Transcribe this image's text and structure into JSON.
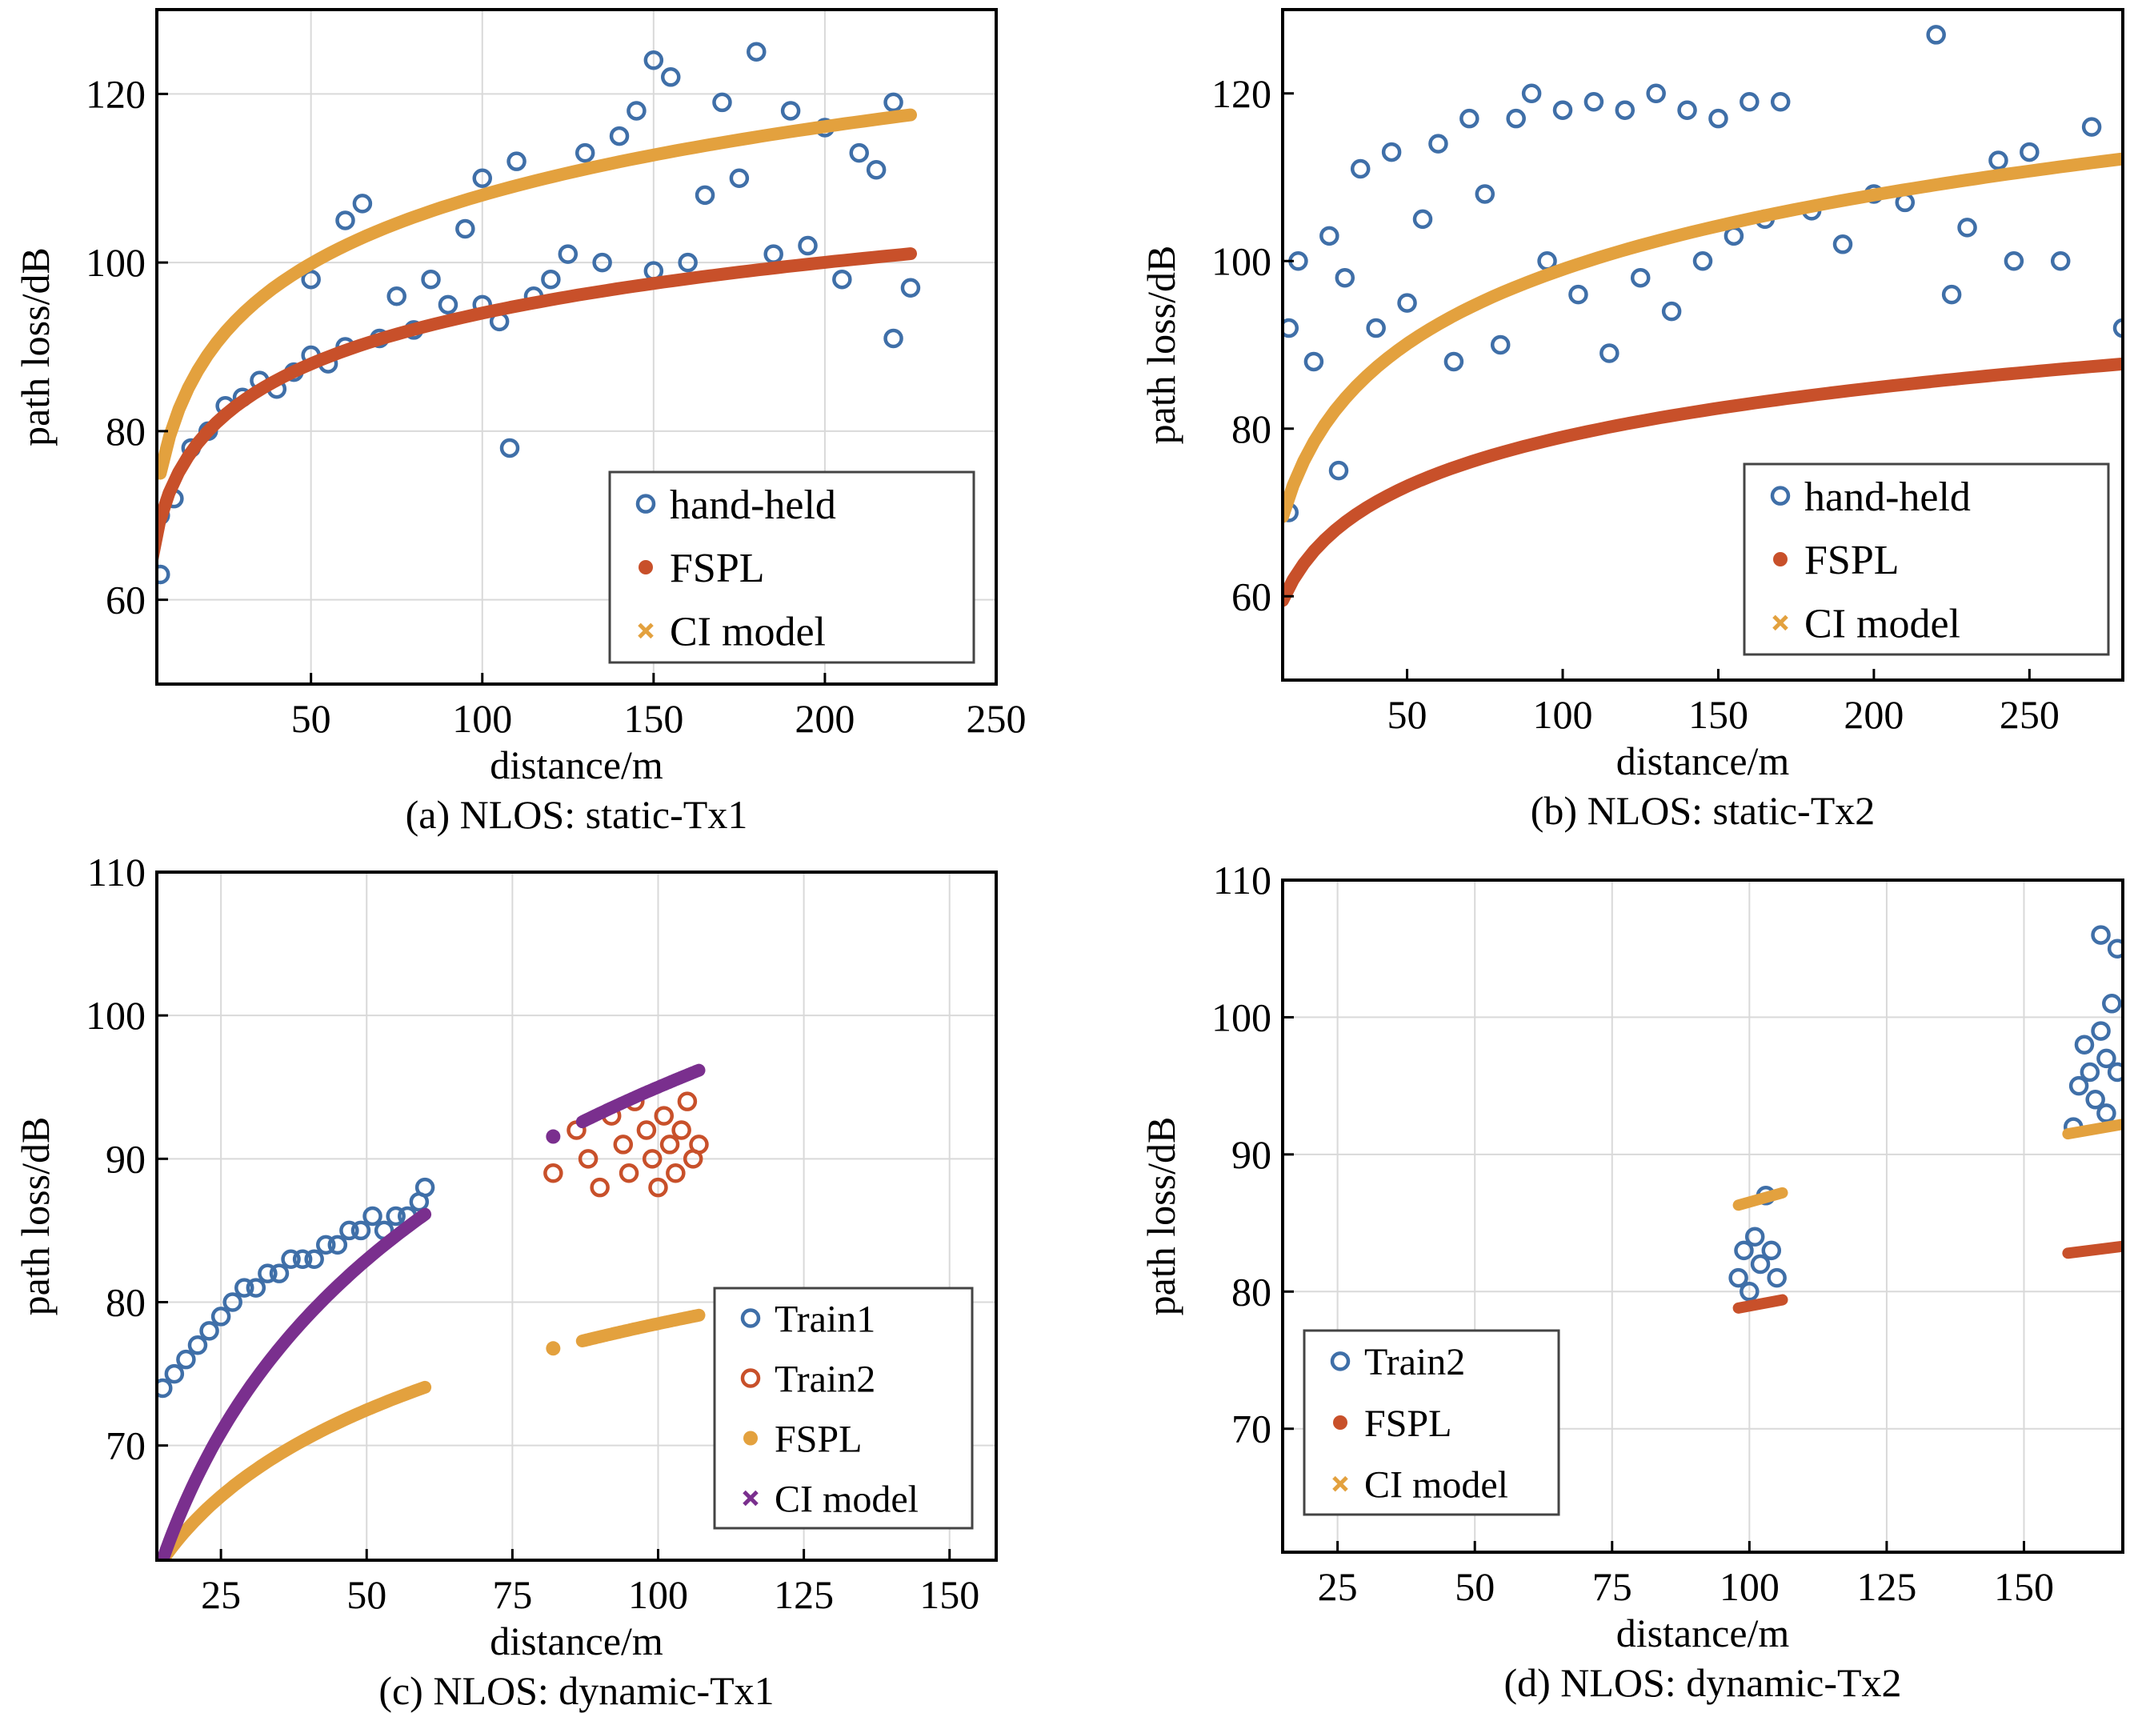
{
  "colors": {
    "blue": "#3f6fa8",
    "red": "#c8502a",
    "orange": "#e3a13e",
    "purple": "#7a2f8e",
    "grid": "#d9d9d9"
  },
  "chart_data": [
    {
      "type": "scatter",
      "caption": "(a) NLOS: static-Tx1",
      "xlabel": "distance/m",
      "ylabel": "path loss/dB",
      "xlim": [
        5,
        250
      ],
      "ylim": [
        50,
        130
      ],
      "xticks": [
        50,
        100,
        150,
        200,
        250
      ],
      "yticks": [
        60,
        80,
        100,
        120
      ],
      "grid": true,
      "legend_position": "lower-right",
      "series": [
        {
          "name": "hand-held",
          "marker": "circle-open",
          "color": "#3f6fa8",
          "points": [
            [
              6,
              63
            ],
            [
              6,
              70
            ],
            [
              10,
              72
            ],
            [
              15,
              78
            ],
            [
              20,
              80
            ],
            [
              25,
              83
            ],
            [
              30,
              84
            ],
            [
              35,
              86
            ],
            [
              40,
              85
            ],
            [
              45,
              87
            ],
            [
              50,
              89
            ],
            [
              50,
              98
            ],
            [
              55,
              88
            ],
            [
              60,
              90
            ],
            [
              60,
              105
            ],
            [
              65,
              107
            ],
            [
              70,
              91
            ],
            [
              75,
              96
            ],
            [
              80,
              92
            ],
            [
              85,
              98
            ],
            [
              90,
              95
            ],
            [
              95,
              104
            ],
            [
              100,
              95
            ],
            [
              100,
              110
            ],
            [
              105,
              93
            ],
            [
              108,
              78
            ],
            [
              110,
              112
            ],
            [
              115,
              96
            ],
            [
              120,
              98
            ],
            [
              125,
              101
            ],
            [
              130,
              113
            ],
            [
              135,
              100
            ],
            [
              140,
              115
            ],
            [
              145,
              118
            ],
            [
              150,
              124
            ],
            [
              150,
              99
            ],
            [
              155,
              122
            ],
            [
              160,
              100
            ],
            [
              165,
              108
            ],
            [
              170,
              119
            ],
            [
              175,
              110
            ],
            [
              180,
              125
            ],
            [
              185,
              101
            ],
            [
              190,
              118
            ],
            [
              195,
              102
            ],
            [
              200,
              116
            ],
            [
              205,
              98
            ],
            [
              210,
              113
            ],
            [
              215,
              111
            ],
            [
              220,
              119
            ],
            [
              220,
              91
            ],
            [
              225,
              97
            ]
          ]
        },
        {
          "name": "FSPL",
          "marker": "dot",
          "color": "#c8502a",
          "curve": {
            "type": "log",
            "y0": 54,
            "x0": 1,
            "exponent": 2.0
          },
          "x_range": [
            3,
            225
          ]
        },
        {
          "name": "CI model",
          "marker": "x",
          "color": "#e3a13e",
          "curve": {
            "type": "log",
            "y0": 54,
            "x0": 1,
            "exponent": 2.7
          },
          "x_range": [
            6,
            225
          ]
        }
      ]
    },
    {
      "type": "scatter",
      "caption": "(b) NLOS: static-Tx2",
      "xlabel": "distance/m",
      "ylabel": "path loss/dB",
      "xlim": [
        10,
        280
      ],
      "ylim": [
        50,
        130
      ],
      "xticks": [
        50,
        100,
        150,
        200,
        250
      ],
      "yticks": [
        60,
        80,
        100,
        120
      ],
      "grid": false,
      "legend_position": "lower-right",
      "series": [
        {
          "name": "hand-held",
          "marker": "circle-open",
          "color": "#3f6fa8",
          "points": [
            [
              12,
              70
            ],
            [
              12,
              92
            ],
            [
              15,
              100
            ],
            [
              20,
              88
            ],
            [
              25,
              103
            ],
            [
              28,
              75
            ],
            [
              30,
              98
            ],
            [
              35,
              111
            ],
            [
              40,
              92
            ],
            [
              45,
              113
            ],
            [
              50,
              95
            ],
            [
              55,
              105
            ],
            [
              60,
              114
            ],
            [
              65,
              88
            ],
            [
              70,
              117
            ],
            [
              75,
              108
            ],
            [
              80,
              90
            ],
            [
              85,
              117
            ],
            [
              90,
              120
            ],
            [
              95,
              100
            ],
            [
              100,
              118
            ],
            [
              105,
              96
            ],
            [
              110,
              119
            ],
            [
              115,
              89
            ],
            [
              120,
              118
            ],
            [
              125,
              98
            ],
            [
              130,
              120
            ],
            [
              135,
              94
            ],
            [
              140,
              118
            ],
            [
              145,
              100
            ],
            [
              150,
              117
            ],
            [
              155,
              103
            ],
            [
              160,
              119
            ],
            [
              165,
              105
            ],
            [
              170,
              119
            ],
            [
              180,
              106
            ],
            [
              190,
              102
            ],
            [
              200,
              108
            ],
            [
              210,
              107
            ],
            [
              220,
              127
            ],
            [
              225,
              96
            ],
            [
              230,
              104
            ],
            [
              240,
              112
            ],
            [
              245,
              100
            ],
            [
              250,
              113
            ],
            [
              260,
              100
            ],
            [
              270,
              116
            ],
            [
              280,
              92
            ]
          ]
        },
        {
          "name": "FSPL",
          "marker": "dot",
          "color": "#c8502a",
          "curve": {
            "type": "log",
            "y0": 40,
            "x0": 1,
            "exponent": 1.95
          },
          "x_range": [
            10,
            280
          ]
        },
        {
          "name": "CI model",
          "marker": "x",
          "color": "#e3a13e",
          "curve": {
            "type": "log",
            "y0": 40,
            "x0": 1,
            "exponent": 2.95
          },
          "x_range": [
            10,
            280
          ]
        }
      ]
    },
    {
      "type": "scatter",
      "caption": "(c) NLOS: dynamic-Tx1",
      "xlabel": "distance/m",
      "ylabel": "path loss/dB",
      "xlim": [
        14,
        158
      ],
      "ylim": [
        62,
        110
      ],
      "xticks": [
        25,
        50,
        75,
        100,
        125,
        150
      ],
      "yticks": [
        70,
        80,
        90,
        100,
        110
      ],
      "grid": true,
      "legend_position": "lower-right",
      "series": [
        {
          "name": "Train1",
          "marker": "circle-open",
          "color": "#3f6fa8",
          "points": [
            [
              15,
              74
            ],
            [
              17,
              75
            ],
            [
              19,
              76
            ],
            [
              21,
              77
            ],
            [
              23,
              78
            ],
            [
              25,
              79
            ],
            [
              27,
              80
            ],
            [
              29,
              81
            ],
            [
              31,
              81
            ],
            [
              33,
              82
            ],
            [
              35,
              82
            ],
            [
              37,
              83
            ],
            [
              39,
              83
            ],
            [
              41,
              83
            ],
            [
              43,
              84
            ],
            [
              45,
              84
            ],
            [
              47,
              85
            ],
            [
              49,
              85
            ],
            [
              51,
              86
            ],
            [
              53,
              85
            ],
            [
              55,
              86
            ],
            [
              57,
              86
            ],
            [
              59,
              87
            ],
            [
              60,
              88
            ]
          ]
        },
        {
          "name": "Train2",
          "marker": "circle-open",
          "color": "#c8502a",
          "points": [
            [
              82,
              89
            ],
            [
              86,
              92
            ],
            [
              88,
              90
            ],
            [
              90,
              88
            ],
            [
              92,
              93
            ],
            [
              94,
              91
            ],
            [
              95,
              89
            ],
            [
              96,
              94
            ],
            [
              98,
              92
            ],
            [
              99,
              90
            ],
            [
              100,
              88
            ],
            [
              101,
              93
            ],
            [
              102,
              91
            ],
            [
              103,
              89
            ],
            [
              104,
              92
            ],
            [
              105,
              94
            ],
            [
              106,
              90
            ],
            [
              107,
              91
            ]
          ]
        },
        {
          "name": "FSPL",
          "marker": "dot",
          "color": "#e3a13e",
          "curve": {
            "type": "log",
            "y0": 38.5,
            "x0": 1,
            "exponent": 2.0
          },
          "x_ranges": [
            [
              14,
              60
            ],
            [
              82,
              82
            ],
            [
              87,
              107
            ]
          ]
        },
        {
          "name": "CI model",
          "marker": "x",
          "color": "#7a2f8e",
          "curve": {
            "type": "log",
            "y0": 15,
            "x0": 1,
            "exponent": 4.0
          },
          "x_ranges": [
            [
              15,
              60
            ],
            [
              82,
              82
            ],
            [
              87,
              107
            ]
          ]
        }
      ]
    },
    {
      "type": "scatter",
      "caption": "(d) NLOS: dynamic-Tx2",
      "xlabel": "distance/m",
      "ylabel": "path loss/dB",
      "xlim": [
        15,
        168
      ],
      "ylim": [
        61,
        110
      ],
      "xticks": [
        25,
        50,
        75,
        100,
        125,
        150
      ],
      "yticks": [
        70,
        80,
        90,
        100,
        110
      ],
      "grid": true,
      "legend_position": "lower-left",
      "series": [
        {
          "name": "Train2",
          "marker": "circle-open",
          "color": "#3f6fa8",
          "points": [
            [
              98,
              81
            ],
            [
              99,
              83
            ],
            [
              100,
              80
            ],
            [
              101,
              84
            ],
            [
              102,
              82
            ],
            [
              103,
              87
            ],
            [
              104,
              83
            ],
            [
              105,
              81
            ],
            [
              159,
              92
            ],
            [
              160,
              95
            ],
            [
              161,
              98
            ],
            [
              162,
              96
            ],
            [
              163,
              94
            ],
            [
              164,
              99
            ],
            [
              165,
              97
            ],
            [
              166,
              101
            ],
            [
              167,
              96
            ],
            [
              164,
              106
            ],
            [
              167,
              105
            ],
            [
              165,
              93
            ]
          ]
        },
        {
          "name": "FSPL",
          "marker": "dot",
          "color": "#c8502a",
          "segments": [
            {
              "x": [
                98,
                106
              ],
              "y": [
                78.8,
                79.4
              ]
            },
            {
              "x": [
                158,
                168
              ],
              "y": [
                82.8,
                83.3
              ]
            }
          ]
        },
        {
          "name": "CI model",
          "marker": "x",
          "color": "#e3a13e",
          "segments": [
            {
              "x": [
                98,
                106
              ],
              "y": [
                86.3,
                87.2
              ]
            },
            {
              "x": [
                158,
                168
              ],
              "y": [
                91.5,
                92.2
              ]
            }
          ]
        }
      ]
    }
  ]
}
